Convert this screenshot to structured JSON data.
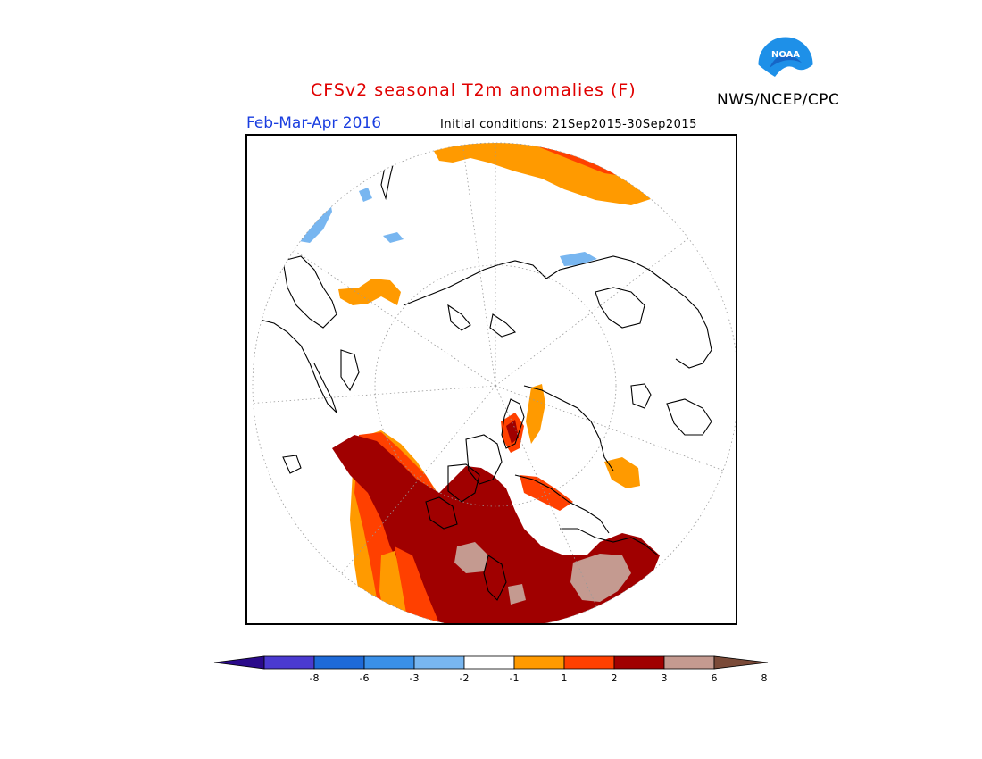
{
  "header": {
    "title": "CFSv2 seasonal T2m anomalies (F)",
    "agency": "NWS/NCEP/CPC",
    "period": "Feb-Mar-Apr 2016",
    "initial_conditions": "Initial conditions: 21Sep2015-30Sep2015",
    "logo_text": "NOAA"
  },
  "legend": {
    "colors": [
      "#2a0a8a",
      "#4a3ad0",
      "#1e6ad8",
      "#3a90e8",
      "#78b6f0",
      "#ffffff",
      "#ff9a00",
      "#ff4000",
      "#a00000",
      "#c49a90",
      "#7a4a38"
    ],
    "ticks": [
      {
        "label": "-8"
      },
      {
        "label": "-6"
      },
      {
        "label": "-3"
      },
      {
        "label": "-2"
      },
      {
        "label": "-1"
      },
      {
        "label": "1"
      },
      {
        "label": "2"
      },
      {
        "label": "3"
      },
      {
        "label": "6"
      },
      {
        "label": "8"
      }
    ]
  }
}
